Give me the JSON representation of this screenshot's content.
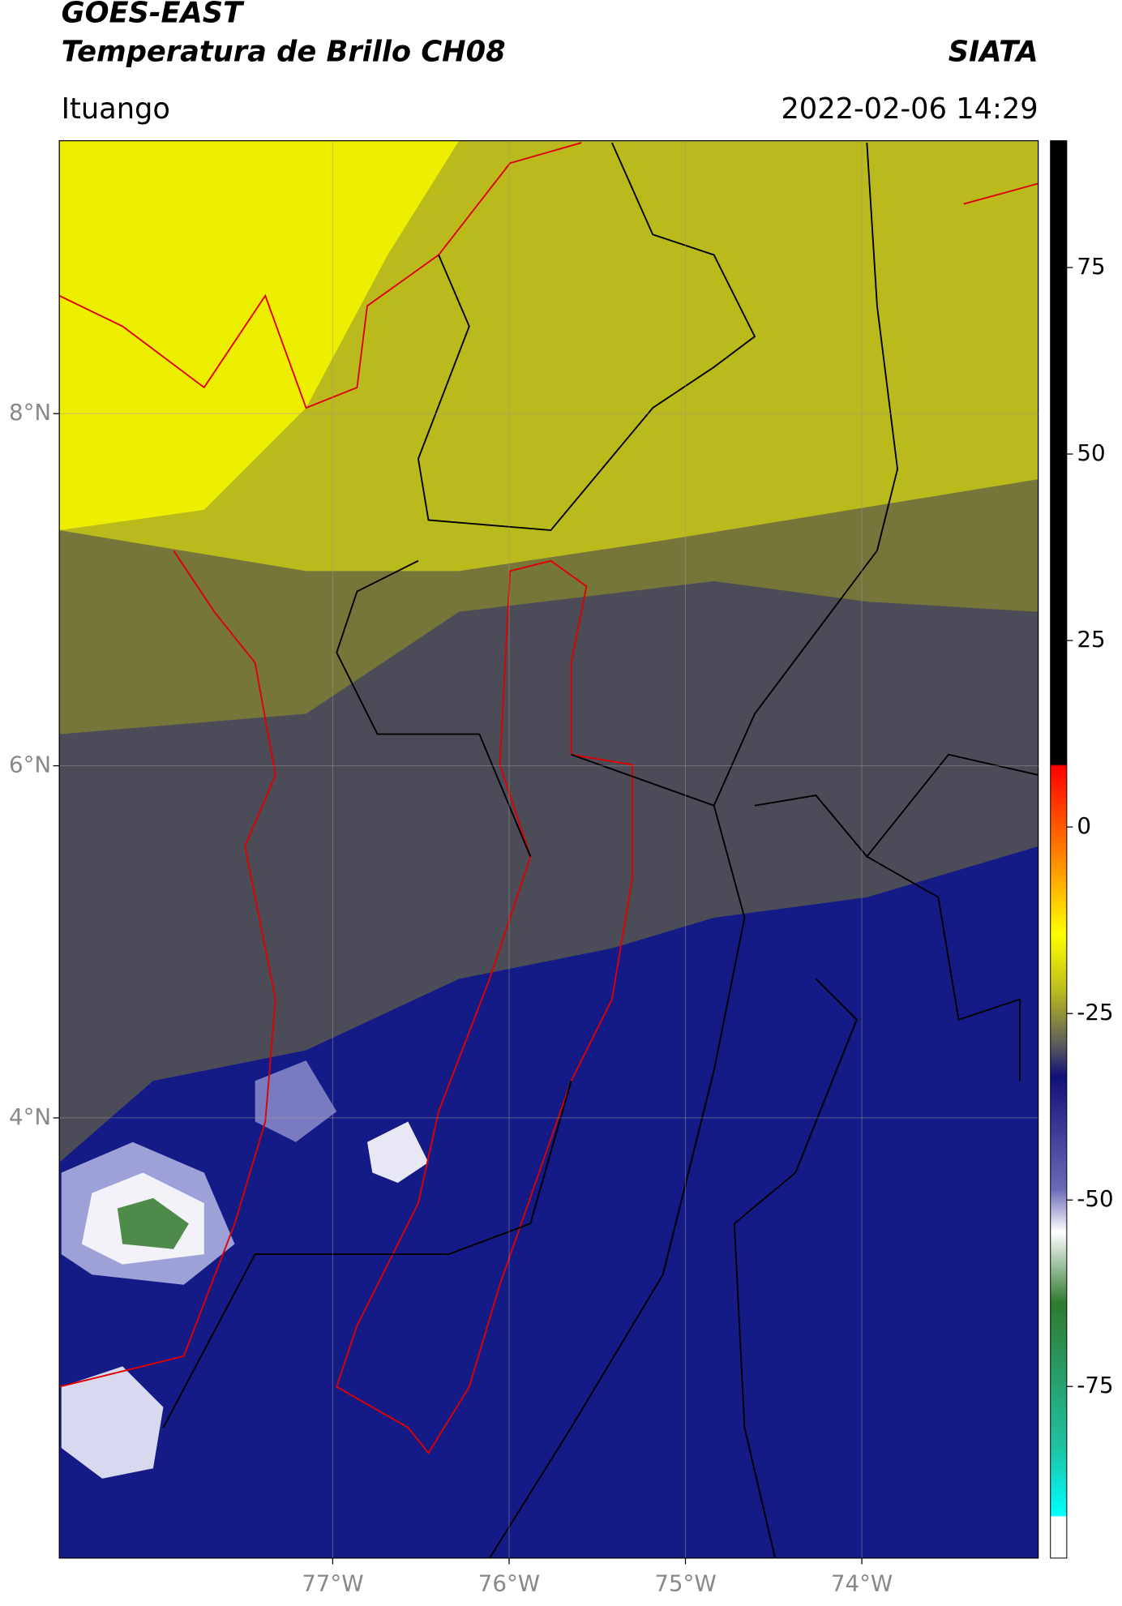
{
  "header": {
    "title": "GOES-EAST",
    "subtitle": "Temperatura de Brillo CH08",
    "source": "SIATA",
    "location": "Ituango",
    "datetime": "2022-02-06 14:29"
  },
  "map": {
    "xlim": [
      -78.55,
      -73.0
    ],
    "ylim": [
      1.5,
      9.55
    ],
    "xticks": [
      {
        "value": -77,
        "label": "77°W"
      },
      {
        "value": -76,
        "label": "76°W"
      },
      {
        "value": -75,
        "label": "75°W"
      },
      {
        "value": -74,
        "label": "74°W"
      }
    ],
    "yticks": [
      {
        "value": 4,
        "label": "4°N"
      },
      {
        "value": 6,
        "label": "6°N"
      },
      {
        "value": 8,
        "label": "8°N"
      }
    ],
    "grid": true
  },
  "colorbar": {
    "lim": [
      -98,
      92
    ],
    "ticks": [
      -75,
      -50,
      -25,
      0,
      25,
      50,
      75
    ]
  }
}
